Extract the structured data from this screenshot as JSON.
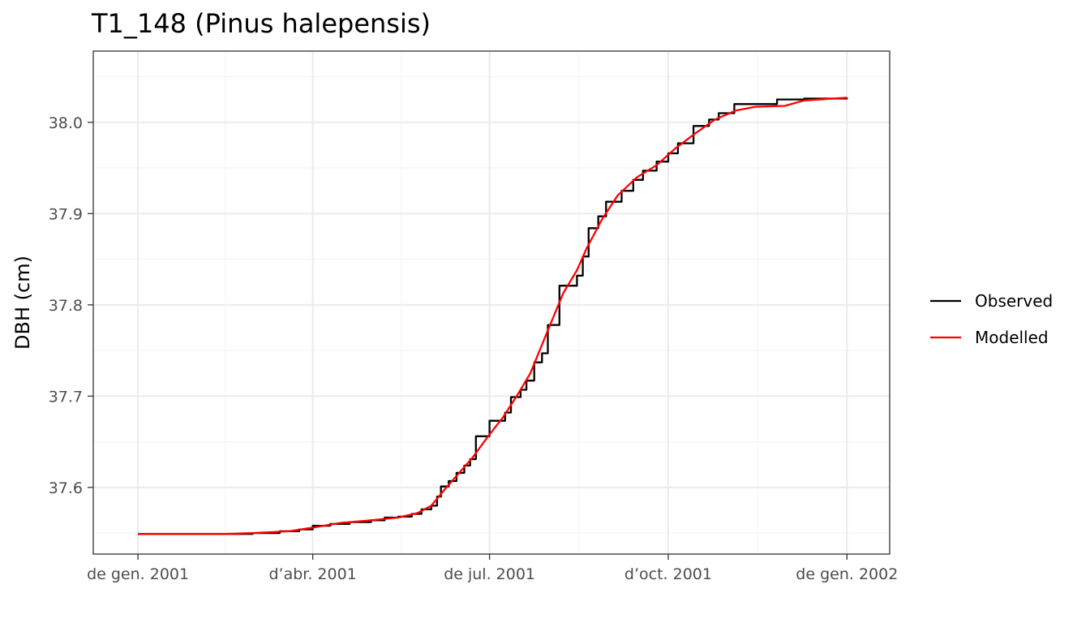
{
  "chart_data": {
    "type": "line",
    "title": "T1_148 (Pinus halepensis)",
    "xlabel": "",
    "ylabel": "DBH (cm)",
    "x_ticks": [
      "2001-01-01",
      "2001-04-01",
      "2001-07-01",
      "2001-10-01",
      "2002-01-01"
    ],
    "x_tick_labels": [
      "de gen. 2001",
      "d’abr. 2001",
      "de jul. 2001",
      "d’oct. 2001",
      "de gen. 2002"
    ],
    "xlim": [
      "2000-12-09",
      "2002-01-23"
    ],
    "y_ticks": [
      37.6,
      37.7,
      37.8,
      37.9,
      38.0
    ],
    "y_tick_labels": [
      "37.6",
      "37.7",
      "37.8",
      "37.9",
      "38.0"
    ],
    "ylim": [
      37.527,
      38.078
    ],
    "grid": true,
    "legend_position": "right",
    "series": [
      {
        "name": "Observed",
        "color": "#000000",
        "step": true,
        "points": [
          [
            "2001-01-01",
            37.549
          ],
          [
            "2001-02-15",
            37.549
          ],
          [
            "2001-03-01",
            37.55
          ],
          [
            "2001-03-15",
            37.552
          ],
          [
            "2001-03-25",
            37.554
          ],
          [
            "2001-04-01",
            37.558
          ],
          [
            "2001-04-10",
            37.56
          ],
          [
            "2001-04-20",
            37.562
          ],
          [
            "2001-05-01",
            37.564
          ],
          [
            "2001-05-08",
            37.567
          ],
          [
            "2001-05-15",
            37.568
          ],
          [
            "2001-05-22",
            37.571
          ],
          [
            "2001-05-27",
            37.576
          ],
          [
            "2001-06-01",
            37.58
          ],
          [
            "2001-06-04",
            37.59
          ],
          [
            "2001-06-06",
            37.601
          ],
          [
            "2001-06-10",
            37.607
          ],
          [
            "2001-06-14",
            37.616
          ],
          [
            "2001-06-18",
            37.624
          ],
          [
            "2001-06-21",
            37.631
          ],
          [
            "2001-06-24",
            37.656
          ],
          [
            "2001-07-01",
            37.673
          ],
          [
            "2001-07-09",
            37.682
          ],
          [
            "2001-07-12",
            37.699
          ],
          [
            "2001-07-17",
            37.707
          ],
          [
            "2001-07-20",
            37.717
          ],
          [
            "2001-07-24",
            37.737
          ],
          [
            "2001-07-28",
            37.747
          ],
          [
            "2001-07-31",
            37.778
          ],
          [
            "2001-08-06",
            37.821
          ],
          [
            "2001-08-15",
            37.832
          ],
          [
            "2001-08-18",
            37.853
          ],
          [
            "2001-08-21",
            37.884
          ],
          [
            "2001-08-26",
            37.897
          ],
          [
            "2001-08-30",
            37.913
          ],
          [
            "2001-09-07",
            37.925
          ],
          [
            "2001-09-13",
            37.937
          ],
          [
            "2001-09-18",
            37.947
          ],
          [
            "2001-09-25",
            37.957
          ],
          [
            "2001-10-01",
            37.966
          ],
          [
            "2001-10-06",
            37.977
          ],
          [
            "2001-10-14",
            37.996
          ],
          [
            "2001-10-22",
            38.003
          ],
          [
            "2001-10-27",
            38.01
          ],
          [
            "2001-11-04",
            38.02
          ],
          [
            "2001-11-26",
            38.025
          ],
          [
            "2001-12-10",
            38.026
          ],
          [
            "2002-01-01",
            38.027
          ]
        ]
      },
      {
        "name": "Modelled",
        "color": "#ff0000",
        "step": false,
        "points": [
          [
            "2001-01-01",
            37.549
          ],
          [
            "2001-02-15",
            37.549
          ],
          [
            "2001-03-01",
            37.55
          ],
          [
            "2001-03-20",
            37.552
          ],
          [
            "2001-04-01",
            37.556
          ],
          [
            "2001-04-15",
            37.561
          ],
          [
            "2001-05-01",
            37.564
          ],
          [
            "2001-05-15",
            37.567
          ],
          [
            "2001-05-25",
            37.572
          ],
          [
            "2001-06-01",
            37.58
          ],
          [
            "2001-06-08",
            37.598
          ],
          [
            "2001-06-15",
            37.615
          ],
          [
            "2001-06-22",
            37.632
          ],
          [
            "2001-07-01",
            37.658
          ],
          [
            "2001-07-08",
            37.677
          ],
          [
            "2001-07-15",
            37.7
          ],
          [
            "2001-07-22",
            37.725
          ],
          [
            "2001-07-31",
            37.772
          ],
          [
            "2001-08-08",
            37.813
          ],
          [
            "2001-08-15",
            37.838
          ],
          [
            "2001-08-20",
            37.862
          ],
          [
            "2001-08-28",
            37.894
          ],
          [
            "2001-09-05",
            37.92
          ],
          [
            "2001-09-15",
            37.94
          ],
          [
            "2001-09-25",
            37.953
          ],
          [
            "2001-10-05",
            37.972
          ],
          [
            "2001-10-15",
            37.988
          ],
          [
            "2001-10-25",
            38.003
          ],
          [
            "2001-11-05",
            38.013
          ],
          [
            "2001-11-15",
            38.017
          ],
          [
            "2001-11-30",
            38.018
          ],
          [
            "2001-12-10",
            38.024
          ],
          [
            "2002-01-01",
            38.027
          ]
        ]
      }
    ]
  }
}
